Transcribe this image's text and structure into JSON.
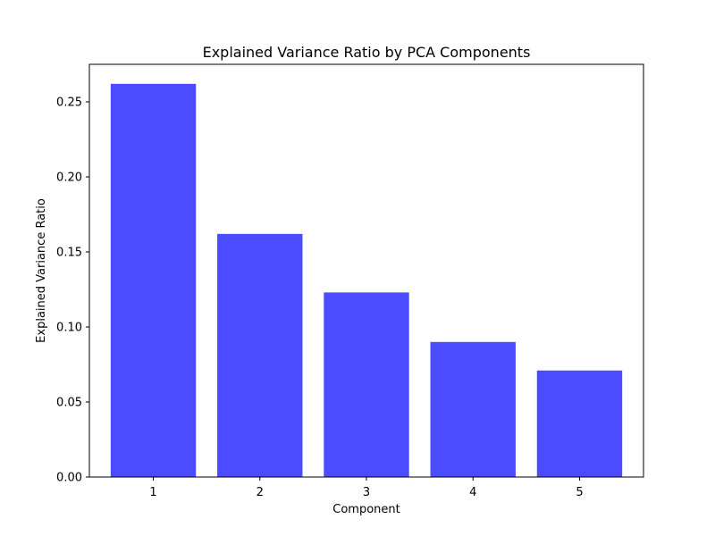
{
  "chart_data": {
    "type": "bar",
    "title": "Explained Variance Ratio by PCA Components",
    "xlabel": "Component",
    "ylabel": "Explained Variance Ratio",
    "categories": [
      "1",
      "2",
      "3",
      "4",
      "5"
    ],
    "values": [
      0.262,
      0.162,
      0.123,
      0.09,
      0.071
    ],
    "ylim": [
      0,
      0.275
    ],
    "yticks": [
      0.0,
      0.05,
      0.1,
      0.15,
      0.2,
      0.25
    ],
    "ytick_labels": [
      "0.00",
      "0.05",
      "0.10",
      "0.15",
      "0.20",
      "0.25"
    ],
    "bar_color": "#4b4bff",
    "grid": false,
    "legend": "none"
  }
}
